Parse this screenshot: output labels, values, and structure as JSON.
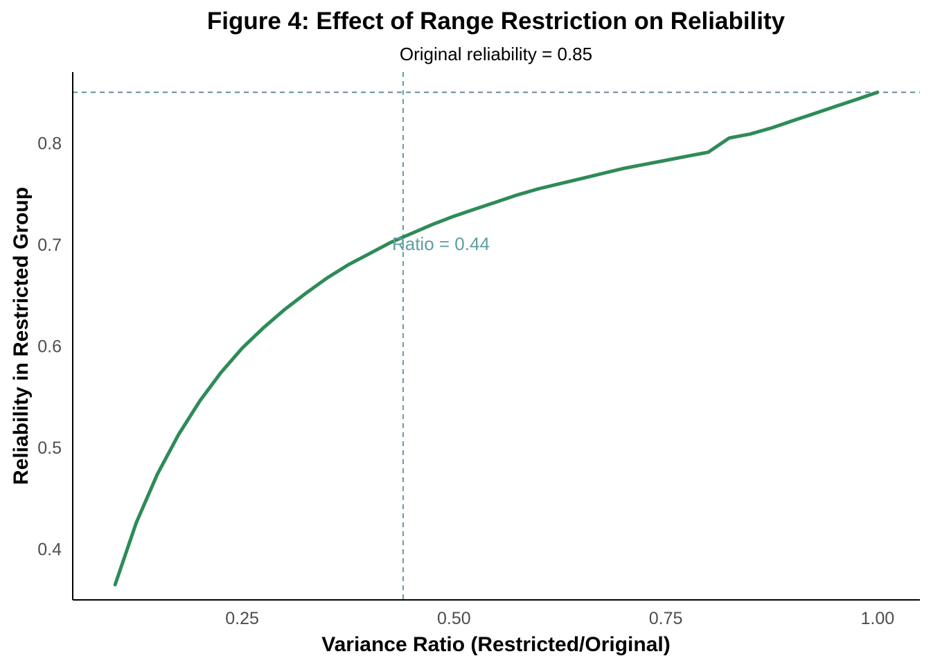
{
  "chart_data": {
    "type": "line",
    "title": "Figure 4: Effect of Range Restriction on Reliability",
    "subtitle": "Original reliability = 0.85",
    "xlabel": "Variance Ratio (Restricted/Original)",
    "ylabel": "Reliability in Restricted Group",
    "xlim": [
      0.05,
      1.05
    ],
    "ylim": [
      0.35,
      0.87
    ],
    "x_ticks": [
      0.25,
      0.5,
      0.75,
      1.0
    ],
    "x_tick_labels": [
      "0.25",
      "0.50",
      "0.75",
      "1.00"
    ],
    "y_ticks": [
      0.4,
      0.5,
      0.6,
      0.7,
      0.8
    ],
    "y_tick_labels": [
      "0.4",
      "0.5",
      "0.6",
      "0.7",
      "0.8"
    ],
    "grid": false,
    "series": [
      {
        "color": "#2e8b57",
        "x": [
          0.1,
          0.125,
          0.15,
          0.175,
          0.2,
          0.225,
          0.25,
          0.275,
          0.3,
          0.325,
          0.35,
          0.375,
          0.4,
          0.425,
          0.45,
          0.475,
          0.5,
          0.525,
          0.55,
          0.575,
          0.6,
          0.625,
          0.65,
          0.675,
          0.7,
          0.725,
          0.75,
          0.775,
          0.8,
          0.825,
          0.85,
          0.875,
          0.9,
          0.925,
          0.95,
          0.975,
          1.0
        ],
        "y": [
          0.365,
          0.426,
          0.474,
          0.513,
          0.546,
          0.574,
          0.598,
          0.618,
          0.636,
          0.652,
          0.667,
          0.68,
          0.691,
          0.702,
          0.711,
          0.72,
          0.728,
          0.735,
          0.742,
          0.749,
          0.755,
          0.76,
          0.765,
          0.77,
          0.775,
          0.779,
          0.783,
          0.787,
          0.791,
          0.805,
          0.809,
          0.815,
          0.822,
          0.829,
          0.836,
          0.843,
          0.85
        ]
      }
    ],
    "reference_lines": [
      {
        "orientation": "horizontal",
        "value": 0.85,
        "color": "#5f8f94",
        "style": "dashed"
      },
      {
        "orientation": "vertical",
        "value": 0.44,
        "color": "#5f9ea0",
        "style": "dashed"
      }
    ],
    "annotations": [
      {
        "text": "Ratio = 0.44",
        "x": 0.44,
        "y": 0.7,
        "color": "#5f9ea0"
      }
    ]
  }
}
